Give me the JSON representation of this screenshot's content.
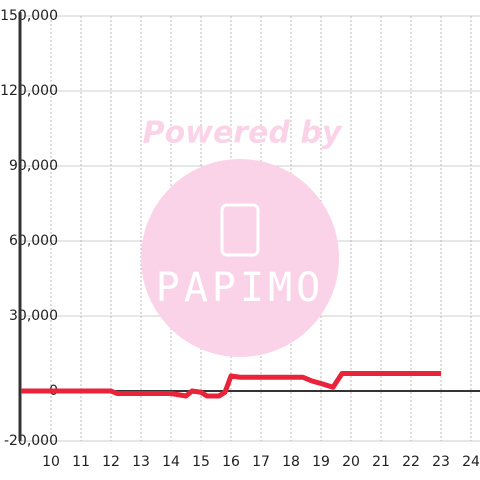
{
  "chart_data": {
    "type": "line",
    "x": [
      9,
      12,
      12.2,
      13,
      14,
      14.5,
      14.7,
      15,
      15.2,
      15.6,
      15.8,
      16,
      16.3,
      17,
      18,
      18.4,
      18.7,
      19,
      19.4,
      19.7,
      20,
      23
    ],
    "series": [
      {
        "color": "#e8233a",
        "values": [
          0,
          0,
          -1000,
          -1000,
          -1000,
          -2000,
          0,
          -500,
          -2000,
          -2000,
          -500,
          6000,
          5500,
          5500,
          5500,
          5500,
          4000,
          3000,
          1500,
          7000,
          7000,
          7000
        ]
      }
    ],
    "xlim": [
      9,
      24.3
    ],
    "xticks": [
      10,
      11,
      12,
      13,
      14,
      15,
      16,
      17,
      18,
      19,
      20,
      21,
      22,
      23,
      24
    ],
    "ylim": [
      -20000,
      150000
    ],
    "yticks": [
      {
        "value": -20000,
        "label": "-20,000"
      },
      0,
      {
        "value": 30000,
        "label": "30,000"
      },
      {
        "value": 60000,
        "label": "60,000"
      },
      {
        "value": 90000,
        "label": "90,000"
      },
      {
        "value": 120000,
        "label": "120,000"
      },
      {
        "value": 150000,
        "label": "150,000"
      }
    ],
    "grid": true
  },
  "watermark": {
    "title": "Powered by",
    "logo": "PAPIMO"
  }
}
